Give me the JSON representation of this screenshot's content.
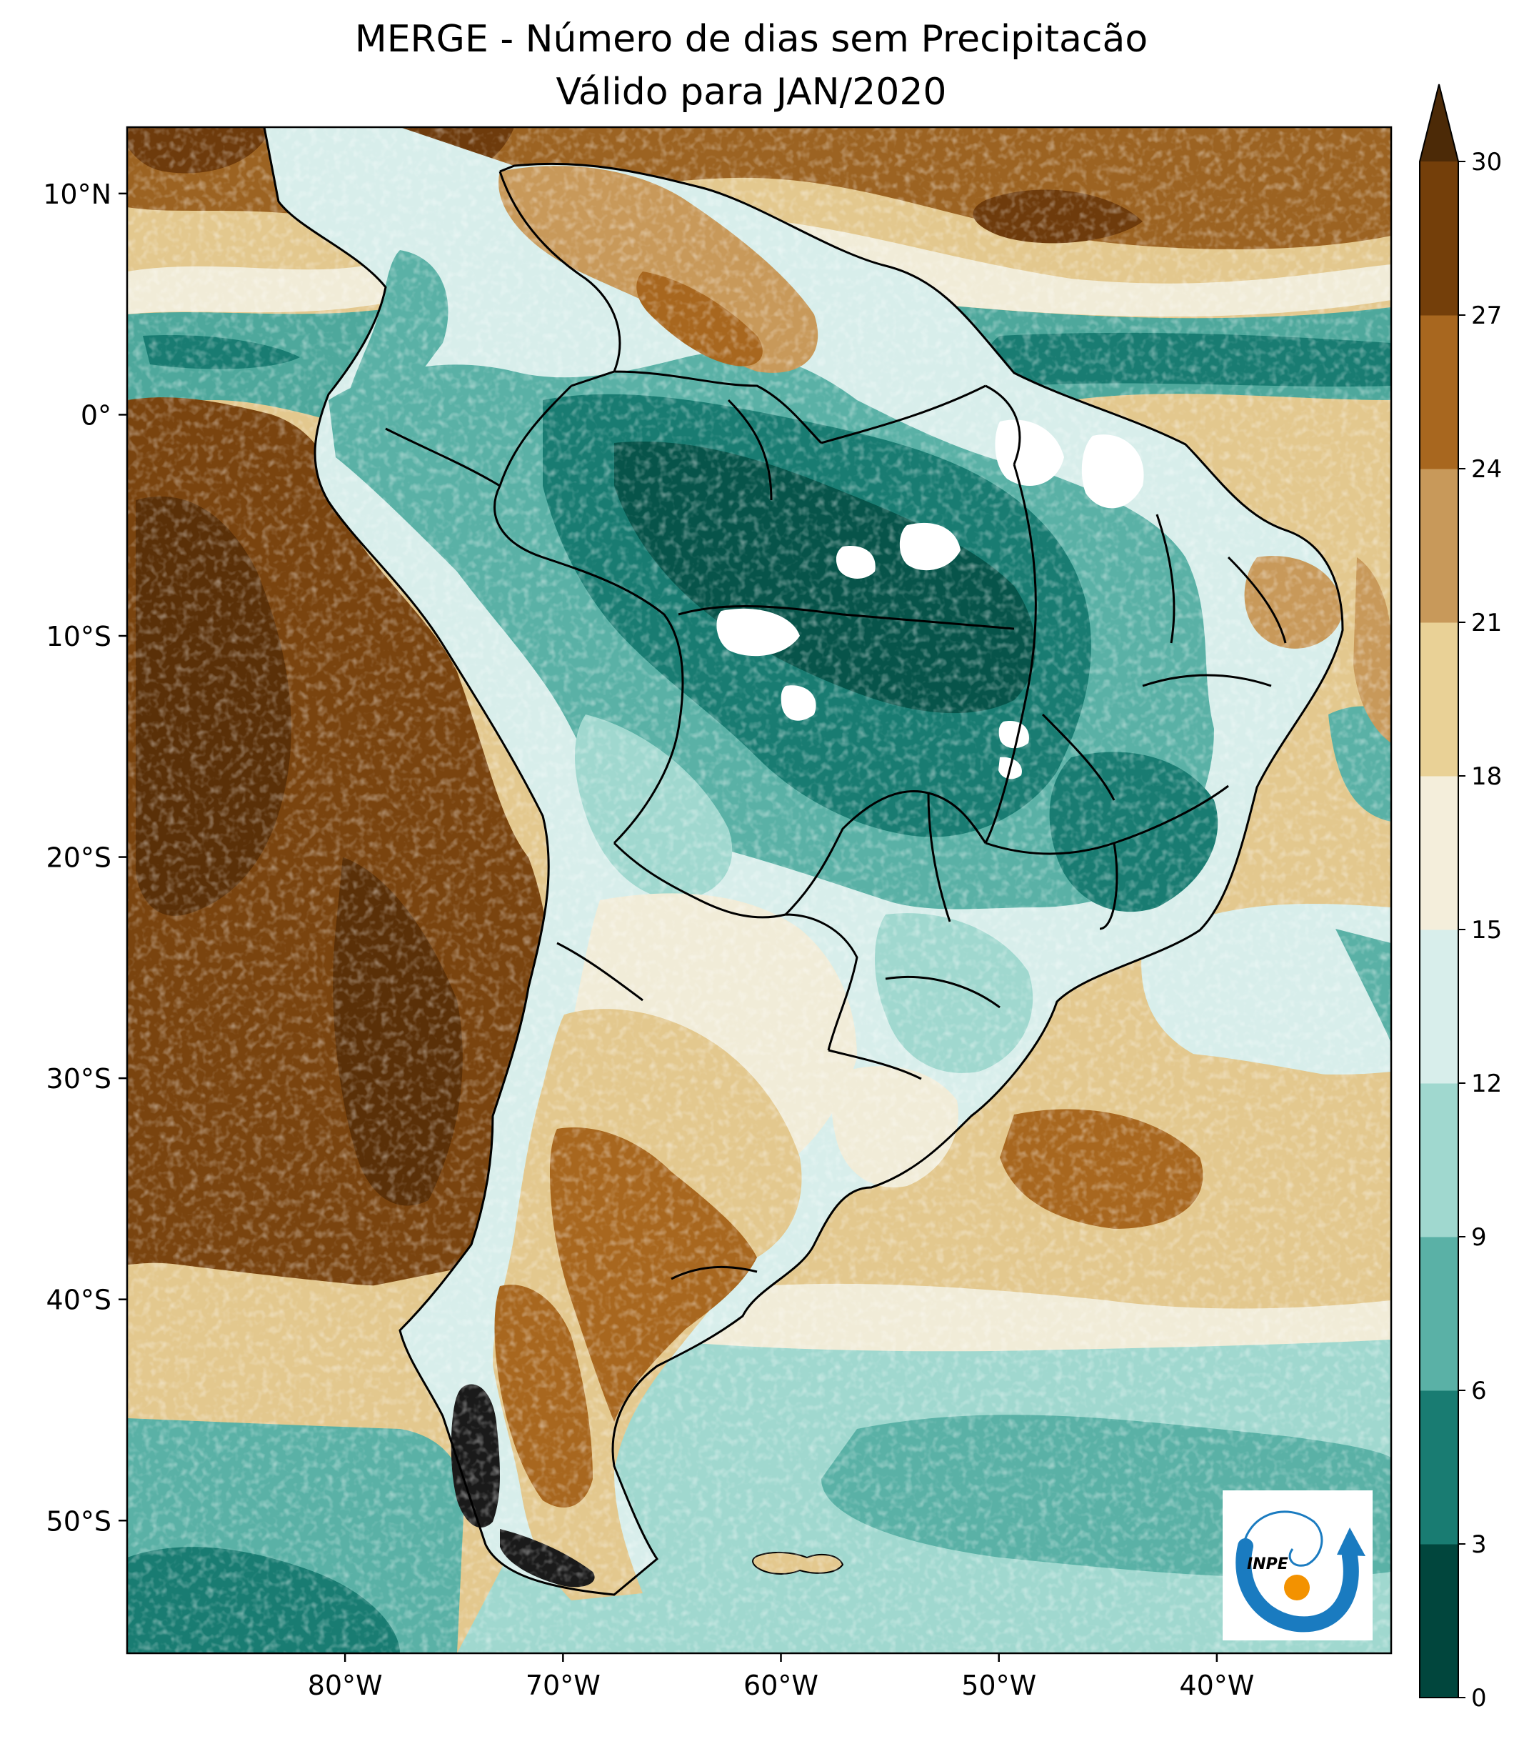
{
  "title": {
    "line1": "MERGE - Número de dias sem Precipitacão",
    "line2": "Válido para JAN/2020"
  },
  "map": {
    "lon_range": [
      -90,
      -32
    ],
    "lat_range": [
      -56,
      13
    ],
    "lon_ticks": [
      {
        "value": -80,
        "label": "80°W"
      },
      {
        "value": -70,
        "label": "70°W"
      },
      {
        "value": -60,
        "label": "60°W"
      },
      {
        "value": -50,
        "label": "50°W"
      },
      {
        "value": -40,
        "label": "40°W"
      }
    ],
    "lat_ticks": [
      {
        "value": 10,
        "label": "10°N"
      },
      {
        "value": 0,
        "label": "0°"
      },
      {
        "value": -10,
        "label": "10°S"
      },
      {
        "value": -20,
        "label": "20°S"
      },
      {
        "value": -30,
        "label": "30°S"
      },
      {
        "value": -40,
        "label": "40°S"
      },
      {
        "value": -50,
        "label": "50°S"
      }
    ]
  },
  "colorbar": {
    "bounds": [
      0,
      3,
      6,
      9,
      12,
      15,
      18,
      21,
      24,
      27,
      30
    ],
    "colors": [
      "#01463d",
      "#197c72",
      "#5ab1a6",
      "#a0d8cf",
      "#d8eeeb",
      "#f4eedb",
      "#e9d196",
      "#c8995a",
      "#a8671f",
      "#743f0a"
    ],
    "extend_color": "#4c2a07",
    "tick_labels": [
      "0",
      "3",
      "6",
      "9",
      "12",
      "15",
      "18",
      "21",
      "24",
      "27",
      "30"
    ]
  },
  "logo": {
    "text": "INPE",
    "arc_color": "#1a7bc0",
    "dot_color": "#f39200"
  },
  "palette": {
    "ocean_brown": "#6e3b0c",
    "ocean_mid": "#9c6322",
    "ocean_tan": "#e9d196",
    "ocean_cream": "#f4eedb",
    "ocean_teal_light": "#a0d8cf",
    "ocean_teal": "#5ab1a6",
    "ocean_teal_dark": "#197c72",
    "amazon_dark": "#105f55",
    "no_data": "#ffffff",
    "border": "#000000"
  }
}
